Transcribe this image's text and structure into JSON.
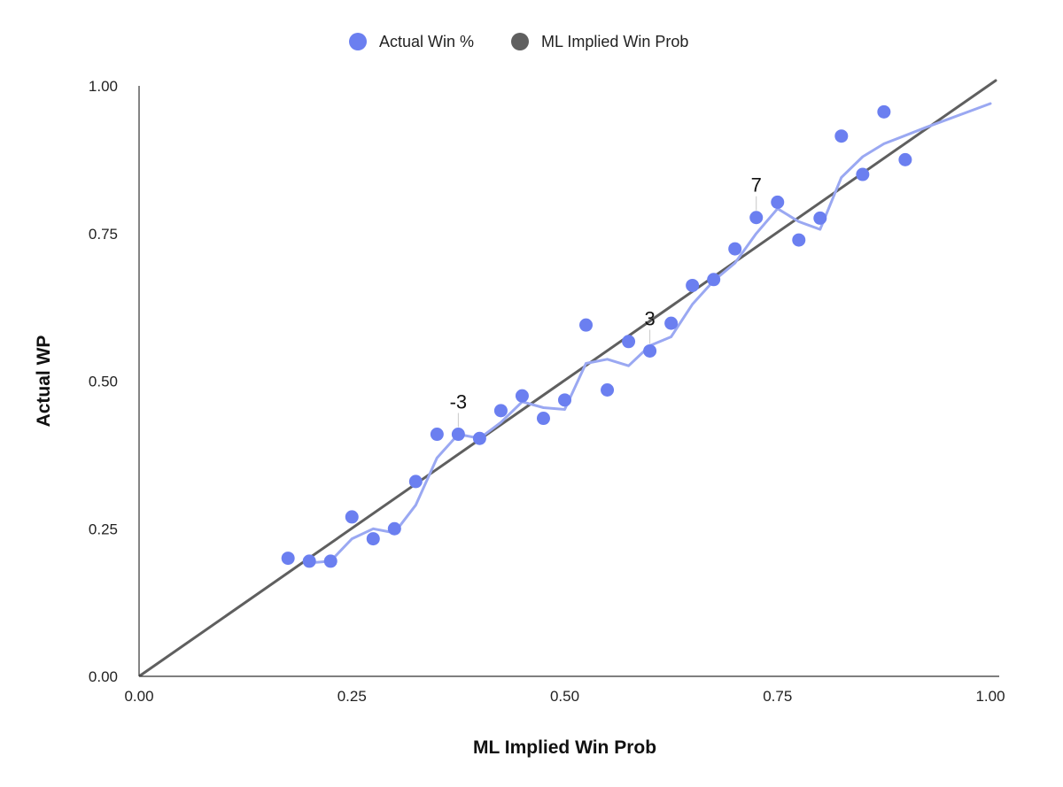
{
  "chart_data": {
    "type": "scatter",
    "xlabel": "ML Implied Win Prob",
    "ylabel": "Actual WP",
    "xlim": [
      0,
      1
    ],
    "ylim": [
      0,
      1
    ],
    "x_ticks": [
      "0.00",
      "0.25",
      "0.50",
      "0.75",
      "1.00"
    ],
    "y_ticks": [
      "0.00",
      "0.25",
      "0.50",
      "0.75",
      "1.00"
    ],
    "grid": false,
    "legend_position": "top",
    "series": [
      {
        "name": "Actual Win %",
        "color": "#6b7ff0",
        "points": [
          [
            0.175,
            0.2
          ],
          [
            0.2,
            0.195
          ],
          [
            0.225,
            0.195
          ],
          [
            0.25,
            0.27
          ],
          [
            0.275,
            0.233
          ],
          [
            0.3,
            0.25
          ],
          [
            0.325,
            0.33
          ],
          [
            0.35,
            0.41
          ],
          [
            0.375,
            0.41
          ],
          [
            0.4,
            0.403
          ],
          [
            0.425,
            0.45
          ],
          [
            0.45,
            0.475
          ],
          [
            0.475,
            0.437
          ],
          [
            0.5,
            0.468
          ],
          [
            0.525,
            0.595
          ],
          [
            0.55,
            0.485
          ],
          [
            0.575,
            0.567
          ],
          [
            0.6,
            0.551
          ],
          [
            0.625,
            0.598
          ],
          [
            0.65,
            0.662
          ],
          [
            0.675,
            0.672
          ],
          [
            0.7,
            0.724
          ],
          [
            0.725,
            0.777
          ],
          [
            0.75,
            0.803
          ],
          [
            0.775,
            0.739
          ],
          [
            0.8,
            0.776
          ],
          [
            0.825,
            0.915
          ],
          [
            0.85,
            0.85
          ],
          [
            0.875,
            0.956
          ],
          [
            0.9,
            0.875
          ]
        ],
        "trend": {
          "color": "#9aa8f2",
          "points": [
            [
              0.2,
              0.192
            ],
            [
              0.225,
              0.195
            ],
            [
              0.25,
              0.233
            ],
            [
              0.275,
              0.25
            ],
            [
              0.3,
              0.243
            ],
            [
              0.325,
              0.29
            ],
            [
              0.35,
              0.37
            ],
            [
              0.375,
              0.41
            ],
            [
              0.4,
              0.403
            ],
            [
              0.425,
              0.43
            ],
            [
              0.45,
              0.465
            ],
            [
              0.475,
              0.455
            ],
            [
              0.5,
              0.452
            ],
            [
              0.525,
              0.53
            ],
            [
              0.55,
              0.537
            ],
            [
              0.575,
              0.526
            ],
            [
              0.6,
              0.56
            ],
            [
              0.625,
              0.575
            ],
            [
              0.65,
              0.63
            ],
            [
              0.675,
              0.67
            ],
            [
              0.7,
              0.7
            ],
            [
              0.725,
              0.75
            ],
            [
              0.75,
              0.792
            ],
            [
              0.775,
              0.77
            ],
            [
              0.8,
              0.757
            ],
            [
              0.825,
              0.845
            ],
            [
              0.85,
              0.88
            ],
            [
              0.875,
              0.902
            ],
            [
              0.925,
              0.93
            ],
            [
              1.0,
              0.97
            ]
          ]
        }
      },
      {
        "name": "ML Implied Win Prob",
        "type": "line",
        "color": "#5f5f5f",
        "points": [
          [
            0,
            0
          ],
          [
            1,
            1
          ]
        ]
      }
    ],
    "annotations": [
      {
        "text": "-3",
        "x": 0.375,
        "y": 0.41
      },
      {
        "text": "3",
        "x": 0.6,
        "y": 0.551
      },
      {
        "text": "7",
        "x": 0.725,
        "y": 0.777
      }
    ]
  }
}
